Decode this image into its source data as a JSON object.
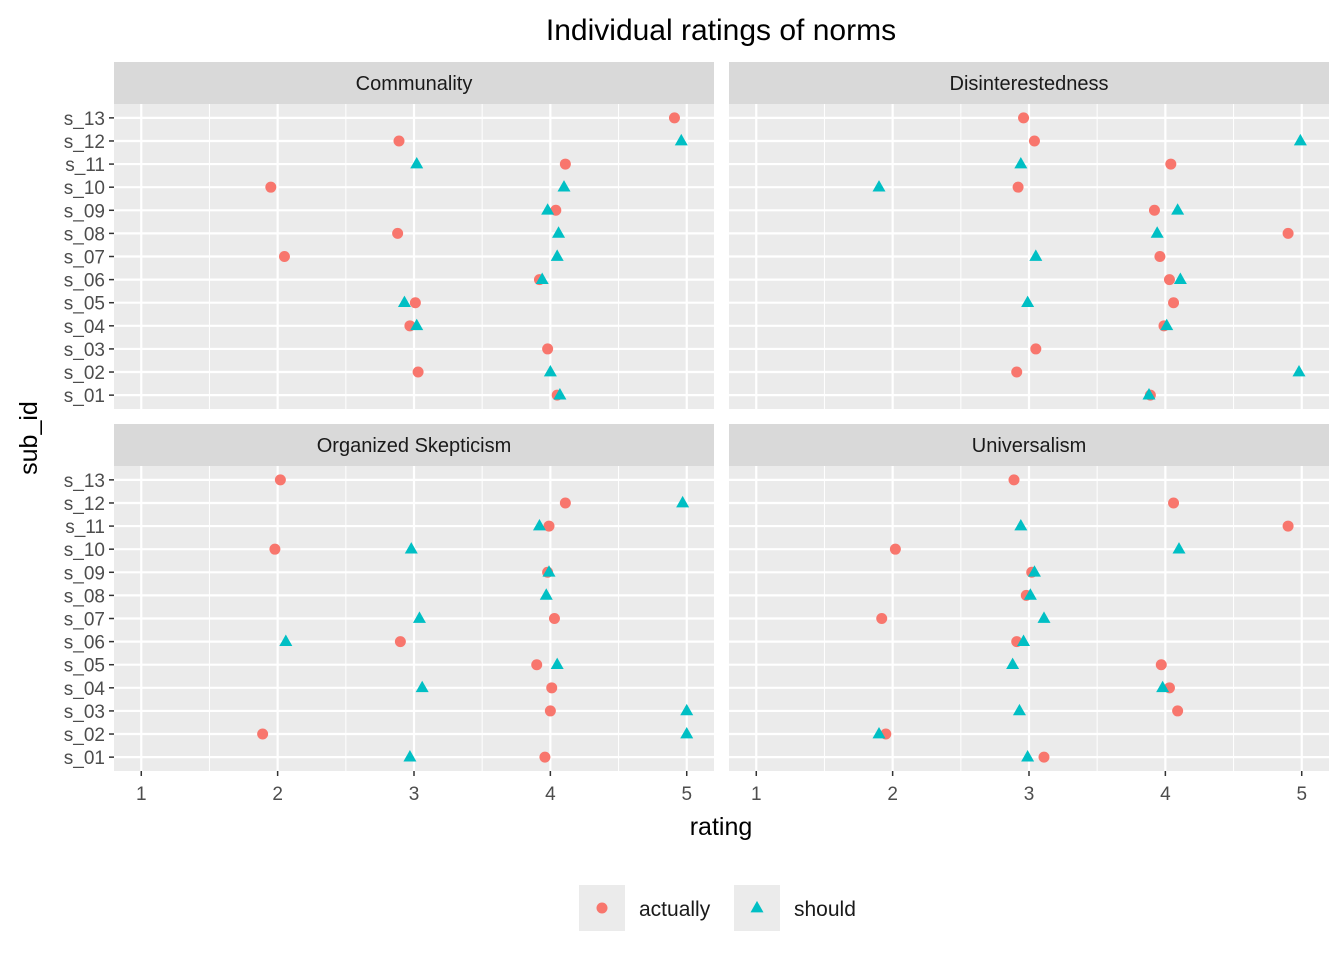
{
  "chart_data": {
    "type": "scatter",
    "title": "Individual ratings of norms",
    "xlabel": "rating",
    "ylabel": "sub_id",
    "xlim": [
      0.8,
      5.2
    ],
    "xticks": [
      "1",
      "2",
      "3",
      "4",
      "5"
    ],
    "categories": [
      "s_01",
      "s_02",
      "s_03",
      "s_04",
      "s_05",
      "s_06",
      "s_07",
      "s_08",
      "s_09",
      "s_10",
      "s_11",
      "s_12",
      "s_13"
    ],
    "grid": true,
    "legend_position": "bottom",
    "legend": [
      {
        "name": "actually",
        "color": "#F8766D",
        "shape": "circle"
      },
      {
        "name": "should",
        "color": "#00BFC4",
        "shape": "triangle"
      }
    ],
    "facets": [
      {
        "name": "Communality",
        "actually": {
          "s_01": 4.05,
          "s_02": 3.03,
          "s_03": 3.98,
          "s_04": 2.97,
          "s_05": 3.01,
          "s_06": 3.92,
          "s_07": 2.05,
          "s_08": 2.88,
          "s_09": 4.04,
          "s_10": 1.95,
          "s_11": 4.11,
          "s_12": 2.89,
          "s_13": 4.91
        },
        "should": {
          "s_01": 4.07,
          "s_02": 4.0,
          "s_04": 3.02,
          "s_05": 2.93,
          "s_06": 3.94,
          "s_07": 4.05,
          "s_08": 4.06,
          "s_09": 3.98,
          "s_10": 4.1,
          "s_11": 3.02,
          "s_12": 4.96
        }
      },
      {
        "name": "Disinterestedness",
        "actually": {
          "s_01": 3.89,
          "s_02": 2.91,
          "s_03": 3.05,
          "s_04": 3.99,
          "s_05": 4.06,
          "s_06": 4.03,
          "s_07": 3.96,
          "s_08": 4.9,
          "s_09": 3.92,
          "s_10": 2.92,
          "s_11": 4.04,
          "s_12": 3.04,
          "s_13": 2.96
        },
        "should": {
          "s_01": 3.88,
          "s_02": 4.98,
          "s_04": 4.01,
          "s_05": 2.99,
          "s_06": 4.11,
          "s_07": 3.05,
          "s_08": 3.94,
          "s_09": 4.09,
          "s_10": 1.9,
          "s_11": 2.94,
          "s_12": 4.99
        }
      },
      {
        "name": "Organized Skepticism",
        "actually": {
          "s_01": 3.96,
          "s_02": 1.89,
          "s_03": 4.0,
          "s_04": 4.01,
          "s_05": 3.9,
          "s_06": 2.9,
          "s_07": 4.03,
          "s_09": 3.98,
          "s_10": 1.98,
          "s_11": 3.99,
          "s_12": 4.11,
          "s_13": 2.02
        },
        "should": {
          "s_01": 2.97,
          "s_02": 5.0,
          "s_03": 5.0,
          "s_04": 3.06,
          "s_05": 4.05,
          "s_06": 2.06,
          "s_07": 3.04,
          "s_08": 3.97,
          "s_09": 3.99,
          "s_10": 2.98,
          "s_11": 3.92,
          "s_12": 4.97
        }
      },
      {
        "name": "Universalism",
        "actually": {
          "s_01": 3.11,
          "s_02": 1.95,
          "s_03": 4.09,
          "s_04": 4.03,
          "s_05": 3.97,
          "s_06": 2.91,
          "s_07": 1.92,
          "s_08": 2.98,
          "s_09": 3.02,
          "s_10": 2.02,
          "s_11": 4.9,
          "s_12": 4.06,
          "s_13": 2.89
        },
        "should": {
          "s_01": 2.99,
          "s_02": 1.9,
          "s_03": 2.93,
          "s_04": 3.98,
          "s_05": 2.88,
          "s_06": 2.96,
          "s_07": 3.11,
          "s_08": 3.01,
          "s_09": 3.04,
          "s_10": 4.1,
          "s_11": 2.94
        }
      }
    ]
  }
}
